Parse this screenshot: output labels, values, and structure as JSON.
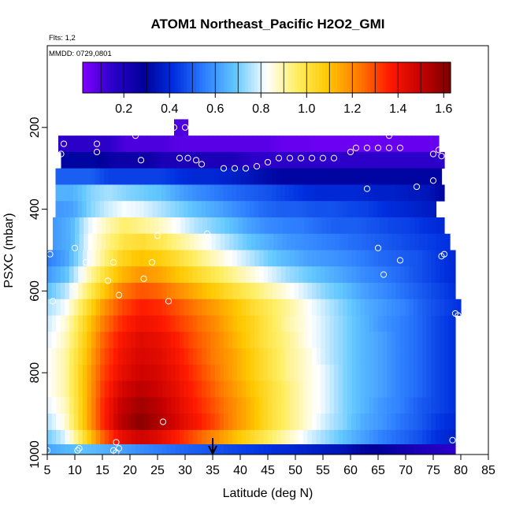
{
  "chart_data": {
    "type": "heatmap",
    "title": "ATOM1 Northeast_Pacific H2O2_GMI",
    "subtitle_flights": "Flts: 1,2",
    "subtitle_dates": "MMDD: 0729,0801",
    "xlabel": "Latitude (deg N)",
    "ylabel": "PSXC (mbar)",
    "xlim": [
      5,
      85
    ],
    "ylim": [
      1000,
      0
    ],
    "x_ticks": [
      "5",
      "10",
      "15",
      "20",
      "25",
      "30",
      "35",
      "40",
      "45",
      "50",
      "55",
      "60",
      "65",
      "70",
      "75",
      "80",
      "85"
    ],
    "y_ticks": [
      "200",
      "400",
      "600",
      "800",
      "1000"
    ],
    "colorbar": {
      "range": [
        0.02,
        1.63
      ],
      "ticks": [
        "0.2",
        "0.4",
        "0.6",
        "0.8",
        "1.0",
        "1.2",
        "1.4",
        "1.6"
      ],
      "colors": [
        "#7f00ff",
        "#2a00c8",
        "#00009a",
        "#0030e0",
        "#2f80ff",
        "#63c8ff",
        "#ffffff",
        "#ffee60",
        "#ffc800",
        "#ff7a00",
        "#ff1a00",
        "#c80000",
        "#7a0000"
      ]
    },
    "marker_latitude": 35,
    "rows": [
      {
        "p": 200,
        "lat_range": [
          28,
          30.5
        ],
        "values": [
          0.1,
          0.1
        ]
      },
      {
        "p": 240,
        "lat_range": [
          7,
          76
        ],
        "values": [
          0.15,
          0.15,
          0.15,
          0.15,
          0.1,
          0.1,
          0.1,
          0.08,
          0.08,
          0.08,
          0.08,
          0.08,
          0.08,
          0.06,
          0.06,
          0.05,
          0.05,
          0.05,
          0.05,
          0.06,
          0.06,
          0.06,
          0.06
        ]
      },
      {
        "p": 280,
        "lat_range": [
          7.5,
          77
        ],
        "values": [
          0.3,
          0.3,
          0.3,
          0.25,
          0.25,
          0.25,
          0.2,
          0.2,
          0.2,
          0.2,
          0.2,
          0.15,
          0.15,
          0.15,
          0.15,
          0.15,
          0.15,
          0.15,
          0.15,
          0.15,
          0.15,
          0.15,
          0.15
        ]
      },
      {
        "p": 320,
        "lat_range": [
          6.5,
          76.5
        ],
        "values": [
          0.5,
          0.5,
          0.5,
          0.45,
          0.45,
          0.45,
          0.45,
          0.42,
          0.4,
          0.4,
          0.38,
          0.35,
          0.32,
          0.3,
          0.3,
          0.3,
          0.3,
          0.3,
          0.3,
          0.3,
          0.3,
          0.3,
          0.3
        ]
      },
      {
        "p": 360,
        "lat_range": [
          6.5,
          77
        ],
        "values": [
          0.65,
          0.65,
          0.72,
          0.75,
          0.72,
          0.7,
          0.68,
          0.62,
          0.58,
          0.55,
          0.52,
          0.5,
          0.48,
          0.45,
          0.42,
          0.4,
          0.4,
          0.4,
          0.38,
          0.38,
          0.36,
          0.35,
          0.3
        ]
      },
      {
        "p": 400,
        "lat_range": [
          6.5,
          75.5
        ],
        "values": [
          0.6,
          0.62,
          0.72,
          0.78,
          0.82,
          0.8,
          0.76,
          0.72,
          0.68,
          0.64,
          0.6,
          0.56,
          0.52,
          0.5,
          0.5,
          0.48,
          0.48,
          0.46,
          0.45,
          0.42,
          0.4,
          0.38,
          0.36
        ]
      },
      {
        "p": 440,
        "lat_range": [
          6,
          77
        ],
        "values": [
          0.6,
          0.65,
          0.8,
          0.88,
          0.95,
          0.92,
          0.88,
          0.82,
          0.76,
          0.72,
          0.68,
          0.62,
          0.58,
          0.56,
          0.55,
          0.52,
          0.5,
          0.5,
          0.48,
          0.46,
          0.45,
          0.42,
          0.4
        ]
      },
      {
        "p": 480,
        "lat_range": [
          6,
          78
        ],
        "values": [
          0.6,
          0.65,
          0.82,
          0.92,
          1.0,
          1.02,
          0.98,
          0.92,
          0.86,
          0.8,
          0.74,
          0.68,
          0.64,
          0.6,
          0.58,
          0.56,
          0.54,
          0.52,
          0.5,
          0.48,
          0.46,
          0.44,
          0.42
        ]
      },
      {
        "p": 520,
        "lat_range": [
          5,
          79
        ],
        "values": [
          0.55,
          0.62,
          0.78,
          0.92,
          1.05,
          1.1,
          1.08,
          1.02,
          0.95,
          0.88,
          0.82,
          0.76,
          0.7,
          0.66,
          0.62,
          0.6,
          0.58,
          0.55,
          0.52,
          0.5,
          0.48,
          0.44,
          0.4
        ]
      },
      {
        "p": 560,
        "lat_range": [
          5,
          79
        ],
        "values": [
          0.6,
          0.68,
          0.85,
          1.0,
          1.12,
          1.18,
          1.16,
          1.1,
          1.04,
          0.98,
          0.92,
          0.86,
          0.8,
          0.74,
          0.7,
          0.66,
          0.62,
          0.58,
          0.55,
          0.52,
          0.48,
          0.44,
          0.4
        ]
      },
      {
        "p": 600,
        "lat_range": [
          5,
          79
        ],
        "values": [
          0.68,
          0.76,
          0.92,
          1.08,
          1.22,
          1.28,
          1.26,
          1.2,
          1.14,
          1.08,
          1.02,
          0.96,
          0.9,
          0.84,
          0.78,
          0.72,
          0.68,
          0.62,
          0.58,
          0.54,
          0.5,
          0.46,
          0.42
        ]
      },
      {
        "p": 640,
        "lat_range": [
          5,
          80
        ],
        "values": [
          0.75,
          0.82,
          1.0,
          1.18,
          1.3,
          1.36,
          1.34,
          1.28,
          1.22,
          1.16,
          1.1,
          1.02,
          0.96,
          0.9,
          0.82,
          0.76,
          0.7,
          0.64,
          0.6,
          0.56,
          0.5,
          0.46,
          0.42
        ]
      },
      {
        "p": 680,
        "lat_range": [
          5,
          79
        ],
        "values": [
          0.78,
          0.86,
          1.04,
          1.22,
          1.34,
          1.4,
          1.38,
          1.32,
          1.26,
          1.2,
          1.12,
          1.06,
          0.98,
          0.9,
          0.84,
          0.78,
          0.72,
          0.66,
          0.6,
          0.56,
          0.52,
          0.46,
          0.42
        ]
      },
      {
        "p": 720,
        "lat_range": [
          5,
          79
        ],
        "values": [
          0.8,
          0.88,
          1.06,
          1.26,
          1.38,
          1.44,
          1.42,
          1.36,
          1.28,
          1.22,
          1.14,
          1.06,
          0.98,
          0.92,
          0.84,
          0.78,
          0.72,
          0.66,
          0.62,
          0.56,
          0.52,
          0.46,
          0.42
        ]
      },
      {
        "p": 760,
        "lat_range": [
          5,
          79
        ],
        "values": [
          0.82,
          0.9,
          1.08,
          1.28,
          1.4,
          1.46,
          1.44,
          1.38,
          1.3,
          1.22,
          1.16,
          1.08,
          1.0,
          0.92,
          0.86,
          0.78,
          0.72,
          0.66,
          0.62,
          0.56,
          0.52,
          0.46,
          0.42
        ]
      },
      {
        "p": 800,
        "lat_range": [
          5,
          79
        ],
        "values": [
          0.82,
          0.9,
          1.1,
          1.3,
          1.42,
          1.48,
          1.46,
          1.4,
          1.32,
          1.24,
          1.16,
          1.08,
          1.0,
          0.92,
          0.86,
          0.8,
          0.72,
          0.66,
          0.62,
          0.56,
          0.52,
          0.46,
          0.42
        ]
      },
      {
        "p": 840,
        "lat_range": [
          5,
          79
        ],
        "values": [
          0.82,
          0.9,
          1.1,
          1.32,
          1.46,
          1.52,
          1.48,
          1.42,
          1.34,
          1.26,
          1.18,
          1.1,
          1.02,
          0.94,
          0.86,
          0.8,
          0.72,
          0.66,
          0.62,
          0.56,
          0.52,
          0.46,
          0.42
        ]
      },
      {
        "p": 880,
        "lat_range": [
          5,
          79
        ],
        "values": [
          0.8,
          0.88,
          1.1,
          1.34,
          1.5,
          1.56,
          1.52,
          1.44,
          1.36,
          1.28,
          1.2,
          1.12,
          1.02,
          0.94,
          0.86,
          0.8,
          0.72,
          0.66,
          0.6,
          0.56,
          0.5,
          0.46,
          0.42
        ]
      },
      {
        "p": 920,
        "lat_range": [
          5,
          79
        ],
        "values": [
          0.76,
          0.86,
          1.1,
          1.34,
          1.52,
          1.6,
          1.54,
          1.46,
          1.38,
          1.3,
          1.2,
          1.12,
          1.02,
          0.94,
          0.86,
          0.78,
          0.72,
          0.64,
          0.6,
          0.54,
          0.5,
          0.44,
          0.4
        ]
      },
      {
        "p": 960,
        "lat_range": [
          5,
          79
        ],
        "values": [
          0.7,
          0.8,
          1.02,
          1.26,
          1.42,
          1.48,
          1.44,
          1.36,
          1.28,
          1.2,
          1.12,
          1.04,
          0.96,
          0.88,
          0.8,
          0.74,
          0.68,
          0.62,
          0.56,
          0.52,
          0.48,
          0.42,
          0.38
        ]
      },
      {
        "p": 990,
        "lat_range": [
          5,
          79
        ],
        "values": [
          0.62,
          0.66,
          0.68,
          0.65,
          0.62,
          0.58,
          0.55,
          0.52,
          0.5,
          0.48,
          0.46,
          0.44,
          0.42,
          0.4,
          0.38,
          0.36,
          0.34,
          0.3,
          0.28,
          0.24,
          0.2,
          0.18,
          0.15
        ]
      }
    ],
    "observations": [
      {
        "lat": 28,
        "p": 200
      },
      {
        "lat": 30,
        "p": 200
      },
      {
        "lat": 8,
        "p": 240
      },
      {
        "lat": 14,
        "p": 240
      },
      {
        "lat": 21,
        "p": 220
      },
      {
        "lat": 67,
        "p": 220
      },
      {
        "lat": 7.5,
        "p": 265
      },
      {
        "lat": 14,
        "p": 260
      },
      {
        "lat": 22,
        "p": 280
      },
      {
        "lat": 29,
        "p": 275
      },
      {
        "lat": 30.5,
        "p": 275
      },
      {
        "lat": 32,
        "p": 280
      },
      {
        "lat": 33,
        "p": 290
      },
      {
        "lat": 37,
        "p": 300
      },
      {
        "lat": 39,
        "p": 300
      },
      {
        "lat": 41,
        "p": 300
      },
      {
        "lat": 43,
        "p": 295
      },
      {
        "lat": 45,
        "p": 285
      },
      {
        "lat": 47,
        "p": 275
      },
      {
        "lat": 49,
        "p": 275
      },
      {
        "lat": 51,
        "p": 275
      },
      {
        "lat": 53,
        "p": 275
      },
      {
        "lat": 55,
        "p": 275
      },
      {
        "lat": 57,
        "p": 275
      },
      {
        "lat": 60,
        "p": 260
      },
      {
        "lat": 61,
        "p": 250
      },
      {
        "lat": 63,
        "p": 250
      },
      {
        "lat": 65,
        "p": 250
      },
      {
        "lat": 67,
        "p": 250
      },
      {
        "lat": 69,
        "p": 250
      },
      {
        "lat": 75,
        "p": 265
      },
      {
        "lat": 76.5,
        "p": 270
      },
      {
        "lat": 76,
        "p": 255
      },
      {
        "lat": 75,
        "p": 330
      },
      {
        "lat": 72,
        "p": 345
      },
      {
        "lat": 63,
        "p": 350
      },
      {
        "lat": 10,
        "p": 495
      },
      {
        "lat": 34,
        "p": 460
      },
      {
        "lat": 65,
        "p": 495
      },
      {
        "lat": 25,
        "p": 465
      },
      {
        "lat": 5.5,
        "p": 510
      },
      {
        "lat": 12,
        "p": 530
      },
      {
        "lat": 17,
        "p": 530
      },
      {
        "lat": 24,
        "p": 530
      },
      {
        "lat": 69,
        "p": 525
      },
      {
        "lat": 77,
        "p": 510
      },
      {
        "lat": 66,
        "p": 560
      },
      {
        "lat": 76.5,
        "p": 515
      },
      {
        "lat": 22.5,
        "p": 570
      },
      {
        "lat": 16,
        "p": 575
      },
      {
        "lat": 10,
        "p": 590
      },
      {
        "lat": 18,
        "p": 610
      },
      {
        "lat": 6,
        "p": 625
      },
      {
        "lat": 27,
        "p": 625
      },
      {
        "lat": 79,
        "p": 655
      },
      {
        "lat": 79.5,
        "p": 660
      },
      {
        "lat": 26,
        "p": 920
      },
      {
        "lat": 17.5,
        "p": 970
      },
      {
        "lat": 78.5,
        "p": 965
      },
      {
        "lat": 5,
        "p": 990
      },
      {
        "lat": 10.5,
        "p": 990
      },
      {
        "lat": 10.8,
        "p": 985
      },
      {
        "lat": 17,
        "p": 990
      },
      {
        "lat": 17.5,
        "p": 995
      },
      {
        "lat": 18,
        "p": 985
      }
    ]
  }
}
